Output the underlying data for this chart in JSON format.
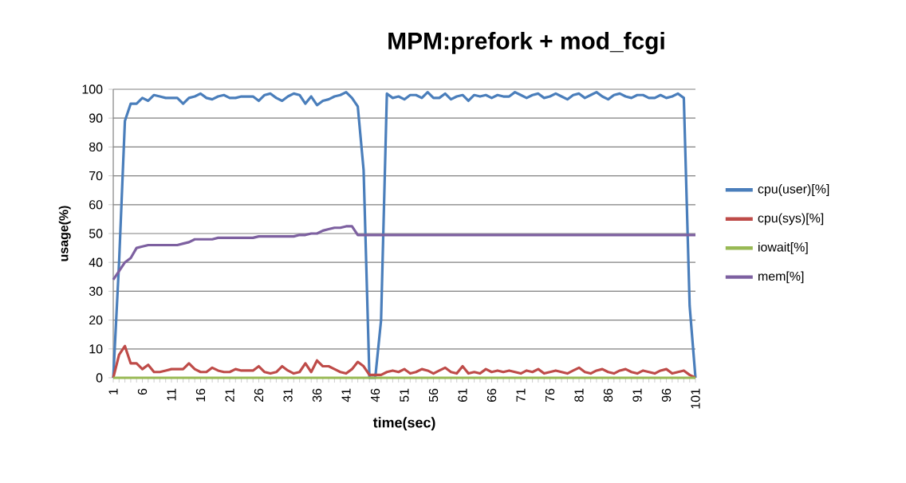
{
  "chart_data": {
    "type": "line",
    "title": "MPM:prefork + mod_fcgi",
    "xlabel": "time(sec)",
    "ylabel": "usage(%)",
    "categories": [
      "1",
      null,
      null,
      null,
      null,
      "6",
      null,
      null,
      null,
      null,
      "11",
      null,
      null,
      null,
      null,
      "16",
      null,
      null,
      null,
      null,
      "21",
      null,
      null,
      null,
      null,
      "26",
      null,
      null,
      null,
      null,
      "31",
      null,
      null,
      null,
      null,
      "36",
      null,
      null,
      null,
      null,
      "41",
      null,
      null,
      null,
      null,
      "46",
      null,
      null,
      null,
      null,
      "51",
      null,
      null,
      null,
      null,
      "56",
      null,
      null,
      null,
      null,
      "61",
      null,
      null,
      null,
      null,
      "66",
      null,
      null,
      null,
      null,
      "71",
      null,
      null,
      null,
      null,
      "76",
      null,
      null,
      null,
      null,
      "81",
      null,
      null,
      null,
      null,
      "86",
      null,
      null,
      null,
      null,
      "91",
      null,
      null,
      null,
      null,
      "96",
      null,
      null,
      null,
      null,
      "101"
    ],
    "ylim": [
      0,
      100
    ],
    "yticks": [
      0,
      10,
      20,
      30,
      40,
      50,
      60,
      70,
      80,
      90,
      100
    ],
    "grid": "y",
    "legend": "right",
    "marker": "none",
    "line_style": "solid",
    "series": [
      {
        "name": "cpu(user)[%]",
        "color": "#4a7ebb",
        "values": [
          0,
          40,
          89,
          95,
          95,
          97,
          96,
          98,
          97.5,
          97,
          97,
          97,
          95,
          97,
          97.5,
          98.5,
          97,
          96.5,
          97.5,
          98,
          97,
          97,
          97.5,
          97.5,
          97.5,
          96,
          98,
          98.5,
          97,
          96,
          97.5,
          98.5,
          98,
          95,
          97.5,
          94.5,
          96,
          96.5,
          97.5,
          98,
          99,
          97,
          94,
          72,
          0,
          0,
          20,
          98.5,
          97,
          97.5,
          96.5,
          98,
          98,
          97,
          99,
          97,
          97,
          98.5,
          96.5,
          97.5,
          98,
          96,
          98,
          97.5,
          98,
          97,
          98,
          97.5,
          97.5,
          99,
          98,
          97,
          98,
          98.5,
          97,
          97.5,
          98.5,
          97.5,
          96.5,
          98,
          98.5,
          97,
          98,
          99,
          97.5,
          96.5,
          98,
          98.5,
          97.5,
          97,
          98,
          98,
          97,
          97,
          98,
          97,
          97.5,
          98.5,
          97,
          25,
          0
        ]
      },
      {
        "name": "cpu(sys)[%]",
        "color": "#be4b48",
        "values": [
          0,
          8,
          11,
          5,
          5,
          3,
          4.5,
          2,
          2,
          2.5,
          3,
          3,
          3,
          5,
          3,
          2,
          2,
          3.5,
          2.5,
          2,
          2,
          3,
          2.5,
          2.5,
          2.5,
          4,
          2,
          1.5,
          2,
          4,
          2.5,
          1.5,
          2,
          5,
          2,
          6,
          4,
          4,
          3,
          2,
          1.5,
          3,
          5.5,
          4,
          1,
          1,
          1,
          2,
          2.5,
          2,
          3,
          1.5,
          2,
          3,
          2.5,
          1.5,
          2.5,
          3.5,
          2,
          1.5,
          4,
          1.5,
          2,
          1.5,
          3,
          2,
          2.5,
          2,
          2.5,
          2,
          1.5,
          2.5,
          2,
          3,
          1.5,
          2,
          2.5,
          2,
          1.5,
          2.5,
          3.5,
          2,
          1.5,
          2.5,
          3,
          2,
          1.5,
          2.5,
          3,
          2,
          1.5,
          2.5,
          2,
          1.5,
          2.5,
          3,
          1.5,
          2,
          2.5,
          1,
          0
        ]
      },
      {
        "name": "iowait[%]",
        "color": "#98b954",
        "values": [
          0,
          0,
          0,
          0,
          0,
          0,
          0,
          0,
          0,
          0,
          0,
          0,
          0,
          0,
          0,
          0,
          0,
          0,
          0,
          0,
          0,
          0,
          0,
          0,
          0,
          0,
          0,
          0,
          0,
          0,
          0,
          0,
          0,
          0,
          0,
          0,
          0,
          0,
          0,
          0,
          0,
          0,
          0,
          0,
          0,
          0,
          0,
          0,
          0,
          0,
          0,
          0,
          0,
          0,
          0,
          0,
          0,
          0,
          0,
          0,
          0,
          0,
          0,
          0,
          0,
          0,
          0,
          0,
          0,
          0,
          0,
          0,
          0,
          0,
          0,
          0,
          0,
          0,
          0,
          0,
          0,
          0,
          0,
          0,
          0,
          0,
          0,
          0,
          0,
          0,
          0,
          0,
          0,
          0,
          0,
          0,
          0,
          0,
          0,
          0,
          0
        ]
      },
      {
        "name": "mem[%]",
        "color": "#7d60a0",
        "values": [
          34,
          37,
          40,
          41.5,
          45,
          45.5,
          46,
          46,
          46,
          46,
          46,
          46,
          46.5,
          47,
          48,
          48,
          48,
          48,
          48.5,
          48.5,
          48.5,
          48.5,
          48.5,
          48.5,
          48.5,
          49,
          49,
          49,
          49,
          49,
          49,
          49,
          49.5,
          49.5,
          50,
          50,
          51,
          51.5,
          52,
          52,
          52.5,
          52.5,
          49.5,
          49.5,
          49.5,
          49.5,
          49.5,
          49.5,
          49.5,
          49.5,
          49.5,
          49.5,
          49.5,
          49.5,
          49.5,
          49.5,
          49.5,
          49.5,
          49.5,
          49.5,
          49.5,
          49.5,
          49.5,
          49.5,
          49.5,
          49.5,
          49.5,
          49.5,
          49.5,
          49.5,
          49.5,
          49.5,
          49.5,
          49.5,
          49.5,
          49.5,
          49.5,
          49.5,
          49.5,
          49.5,
          49.5,
          49.5,
          49.5,
          49.5,
          49.5,
          49.5,
          49.5,
          49.5,
          49.5,
          49.5,
          49.5,
          49.5,
          49.5,
          49.5,
          49.5,
          49.5,
          49.5,
          49.5,
          49.5,
          49.5,
          49.5
        ]
      }
    ]
  }
}
